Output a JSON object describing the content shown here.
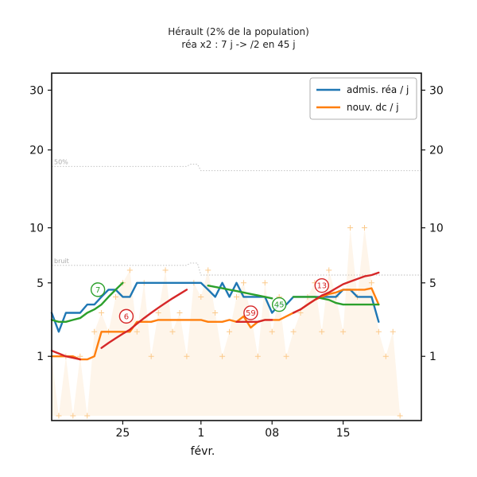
{
  "chart_data": {
    "type": "line",
    "title": "Hérault (2% de la population)",
    "subtitle": "réa x2 : 7 j -> /2 en 45 j",
    "xlabel": "févr.",
    "xlim": [
      0,
      52
    ],
    "ylim": [
      0,
      32
    ],
    "y_scale": "sqrt",
    "yticks": [
      1,
      5,
      10,
      20,
      30
    ],
    "xticks": [
      {
        "x": 10,
        "label": "25"
      },
      {
        "x": 21,
        "label": "1"
      },
      {
        "x": 31,
        "label": "08"
      },
      {
        "x": 41,
        "label": "15"
      }
    ],
    "legend": {
      "position": "top-right",
      "entries": [
        {
          "label": "admis. réa / j",
          "color": "#1f77b4"
        },
        {
          "label": "nouv. dc / j",
          "color": "#ff7f0e"
        }
      ]
    },
    "reference_lines": [
      {
        "label": "50%",
        "points": [
          [
            0,
            17.6
          ],
          [
            19,
            17.6
          ],
          [
            19.5,
            17.9
          ],
          [
            20.5,
            17.9
          ],
          [
            21,
            17.0
          ],
          [
            52,
            17.0
          ]
        ]
      },
      {
        "label": "bruit",
        "points": [
          [
            0,
            6.4
          ],
          [
            19,
            6.4
          ],
          [
            19.5,
            6.6
          ],
          [
            20.5,
            6.6
          ],
          [
            21,
            5.6
          ],
          [
            52,
            5.6
          ]
        ]
      }
    ],
    "series": [
      {
        "name": "admis. réa / j",
        "color": "#1f77b4",
        "points": [
          [
            0,
            3
          ],
          [
            1,
            2
          ],
          [
            2,
            3
          ],
          [
            3,
            3
          ],
          [
            4,
            3
          ],
          [
            5,
            3.5
          ],
          [
            6,
            3.5
          ],
          [
            7,
            4
          ],
          [
            8,
            4.5
          ],
          [
            9,
            4.5
          ],
          [
            10,
            4
          ],
          [
            11,
            4
          ],
          [
            12,
            5
          ],
          [
            13,
            5
          ],
          [
            14,
            5
          ],
          [
            15,
            5
          ],
          [
            16,
            5
          ],
          [
            17,
            5
          ],
          [
            18,
            5
          ],
          [
            19,
            5
          ],
          [
            20,
            5
          ],
          [
            21,
            5
          ],
          [
            22,
            4.5
          ],
          [
            23,
            4
          ],
          [
            24,
            5
          ],
          [
            25,
            4
          ],
          [
            26,
            5
          ],
          [
            27,
            4
          ],
          [
            28,
            4
          ],
          [
            29,
            4
          ],
          [
            30,
            4
          ],
          [
            31,
            3
          ],
          [
            32,
            3.5
          ],
          [
            33,
            3.5
          ],
          [
            34,
            4
          ],
          [
            35,
            4
          ],
          [
            36,
            4
          ],
          [
            37,
            4
          ],
          [
            38,
            4
          ],
          [
            39,
            4
          ],
          [
            40,
            4
          ],
          [
            41,
            4.5
          ],
          [
            42,
            4.5
          ],
          [
            43,
            4
          ],
          [
            44,
            4
          ],
          [
            45,
            4
          ],
          [
            46,
            2.5
          ]
        ]
      },
      {
        "name": "nouv. dc / j",
        "color": "#ff7f0e",
        "points": [
          [
            0,
            1
          ],
          [
            1,
            1
          ],
          [
            2,
            1
          ],
          [
            3,
            1
          ],
          [
            4,
            0.9
          ],
          [
            5,
            0.9
          ],
          [
            6,
            1
          ],
          [
            7,
            2
          ],
          [
            8,
            2
          ],
          [
            9,
            2
          ],
          [
            10,
            2
          ],
          [
            11,
            2
          ],
          [
            12,
            2.5
          ],
          [
            13,
            2.5
          ],
          [
            14,
            2.5
          ],
          [
            15,
            2.6
          ],
          [
            16,
            2.6
          ],
          [
            17,
            2.6
          ],
          [
            18,
            2.6
          ],
          [
            19,
            2.6
          ],
          [
            20,
            2.6
          ],
          [
            21,
            2.6
          ],
          [
            22,
            2.5
          ],
          [
            23,
            2.5
          ],
          [
            24,
            2.5
          ],
          [
            25,
            2.6
          ],
          [
            26,
            2.5
          ],
          [
            27,
            2.8
          ],
          [
            28,
            2.2
          ],
          [
            29,
            2.5
          ],
          [
            30,
            2.6
          ],
          [
            31,
            2.6
          ],
          [
            32,
            2.6
          ],
          [
            33,
            2.8
          ],
          [
            34,
            3
          ],
          [
            35,
            3.2
          ],
          [
            36,
            3.5
          ],
          [
            37,
            3.8
          ],
          [
            38,
            4
          ],
          [
            39,
            4.2
          ],
          [
            40,
            4.3
          ],
          [
            41,
            4.5
          ],
          [
            42,
            4.5
          ],
          [
            43,
            4.5
          ],
          [
            44,
            4.5
          ],
          [
            45,
            4.6
          ],
          [
            46,
            3.5
          ]
        ]
      },
      {
        "name": "",
        "color": "#2ca02c",
        "segments": [
          [
            [
              0,
              2.6
            ],
            [
              1,
              2.5
            ],
            [
              2,
              2.5
            ],
            [
              3,
              2.6
            ],
            [
              4,
              2.7
            ],
            [
              5,
              3
            ],
            [
              6,
              3.2
            ],
            [
              7,
              3.5
            ],
            [
              8,
              4
            ],
            [
              9,
              4.5
            ],
            [
              10,
              5
            ]
          ],
          [
            [
              22,
              4.8
            ],
            [
              23,
              4.7
            ],
            [
              24,
              4.6
            ],
            [
              25,
              4.5
            ],
            [
              26,
              4.4
            ],
            [
              27,
              4.3
            ],
            [
              28,
              4.2
            ],
            [
              29,
              4.1
            ],
            [
              30,
              4.0
            ],
            [
              31,
              3.9
            ]
          ],
          [
            [
              34,
              4.0
            ],
            [
              35,
              4.0
            ],
            [
              36,
              4.0
            ],
            [
              37,
              4.0
            ],
            [
              38,
              3.9
            ],
            [
              39,
              3.8
            ],
            [
              40,
              3.6
            ],
            [
              41,
              3.5
            ],
            [
              42,
              3.5
            ],
            [
              43,
              3.5
            ],
            [
              44,
              3.5
            ],
            [
              45,
              3.5
            ],
            [
              46,
              3.5
            ]
          ]
        ]
      },
      {
        "name": "",
        "color": "#d62728",
        "segments": [
          [
            [
              0,
              1.2
            ],
            [
              1,
              1.1
            ],
            [
              2,
              1
            ],
            [
              3,
              0.95
            ],
            [
              4,
              0.9
            ]
          ],
          [
            [
              7,
              1.3
            ],
            [
              8,
              1.5
            ],
            [
              9,
              1.7
            ],
            [
              10,
              1.9
            ],
            [
              11,
              2.1
            ],
            [
              12,
              2.4
            ],
            [
              13,
              2.7
            ],
            [
              14,
              3.0
            ],
            [
              15,
              3.3
            ],
            [
              16,
              3.6
            ],
            [
              17,
              3.9
            ],
            [
              18,
              4.2
            ],
            [
              19,
              4.5
            ]
          ],
          [
            [
              26,
              2.5
            ],
            [
              27,
              2.5
            ],
            [
              28,
              2.5
            ],
            [
              29,
              2.5
            ],
            [
              30,
              2.6
            ],
            [
              31,
              2.6
            ]
          ],
          [
            [
              34,
              3
            ],
            [
              35,
              3.2
            ],
            [
              36,
              3.5
            ],
            [
              37,
              3.8
            ],
            [
              38,
              4.1
            ],
            [
              39,
              4.3
            ],
            [
              40,
              4.6
            ],
            [
              41,
              4.9
            ],
            [
              42,
              5.1
            ],
            [
              43,
              5.3
            ],
            [
              44,
              5.5
            ],
            [
              45,
              5.6
            ],
            [
              46,
              5.8
            ]
          ]
        ]
      }
    ],
    "daily_points": {
      "color": "#fbc98a",
      "values": [
        [
          0,
          1
        ],
        [
          1,
          0
        ],
        [
          2,
          1
        ],
        [
          3,
          0
        ],
        [
          4,
          1
        ],
        [
          5,
          0
        ],
        [
          6,
          2
        ],
        [
          7,
          3
        ],
        [
          8,
          2
        ],
        [
          9,
          4
        ],
        [
          10,
          5
        ],
        [
          11,
          6
        ],
        [
          12,
          2
        ],
        [
          13,
          5
        ],
        [
          14,
          1
        ],
        [
          15,
          3
        ],
        [
          16,
          6
        ],
        [
          17,
          2
        ],
        [
          18,
          3
        ],
        [
          19,
          1
        ],
        [
          20,
          5
        ],
        [
          21,
          4
        ],
        [
          22,
          6
        ],
        [
          23,
          3
        ],
        [
          24,
          1
        ],
        [
          25,
          2
        ],
        [
          26,
          4
        ],
        [
          27,
          5
        ],
        [
          28,
          3
        ],
        [
          29,
          1
        ],
        [
          30,
          5
        ],
        [
          31,
          2
        ],
        [
          32,
          4
        ],
        [
          33,
          1
        ],
        [
          34,
          2
        ],
        [
          35,
          3
        ],
        [
          36,
          4
        ],
        [
          37,
          5
        ],
        [
          38,
          2
        ],
        [
          39,
          6
        ],
        [
          40,
          4
        ],
        [
          41,
          2
        ],
        [
          42,
          10
        ],
        [
          43,
          4
        ],
        [
          44,
          10
        ],
        [
          45,
          5
        ],
        [
          46,
          2
        ],
        [
          47,
          1
        ],
        [
          48,
          2
        ],
        [
          49,
          0
        ]
      ]
    },
    "annotations": [
      {
        "text": "7",
        "x": 6.5,
        "y": 4.5,
        "color": "#2ca02c"
      },
      {
        "text": "6",
        "x": 10.5,
        "y": 2.8,
        "color": "#d62728"
      },
      {
        "text": "59",
        "x": 28,
        "y": 3.0,
        "color": "#d62728"
      },
      {
        "text": "45",
        "x": 32,
        "y": 3.5,
        "color": "#2ca02c"
      },
      {
        "text": "13",
        "x": 38,
        "y": 4.8,
        "color": "#d62728"
      }
    ]
  }
}
